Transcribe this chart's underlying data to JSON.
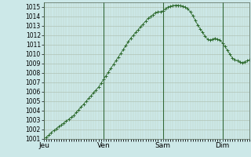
{
  "background_color": "#cce8e8",
  "plot_bg_color": "#cce8e8",
  "grid_major_color": "#aabbaa",
  "grid_minor_color": "#bbccbb",
  "line_color": "#2d6a2d",
  "marker_color": "#2d6a2d",
  "ylim": [
    1001,
    1015.5
  ],
  "yticks": [
    1001,
    1002,
    1003,
    1004,
    1005,
    1006,
    1007,
    1008,
    1009,
    1010,
    1011,
    1012,
    1013,
    1014,
    1015
  ],
  "day_labels": [
    "Jeu",
    "Ven",
    "Sam",
    "Dim"
  ],
  "day_positions": [
    0,
    48,
    96,
    144
  ],
  "vline_positions": [
    0,
    48,
    96,
    144
  ],
  "xlim": [
    0,
    166
  ],
  "x": [
    0,
    2,
    4,
    6,
    8,
    10,
    12,
    14,
    16,
    18,
    20,
    22,
    24,
    26,
    28,
    30,
    32,
    34,
    36,
    38,
    40,
    42,
    44,
    46,
    48,
    50,
    52,
    54,
    56,
    58,
    60,
    62,
    64,
    66,
    68,
    70,
    72,
    74,
    76,
    78,
    80,
    82,
    84,
    86,
    88,
    90,
    92,
    94,
    96,
    98,
    100,
    102,
    104,
    106,
    108,
    110,
    112,
    114,
    116,
    118,
    120,
    122,
    124,
    126,
    128,
    130,
    132,
    134,
    136,
    138,
    140,
    142,
    144,
    146,
    148,
    150,
    152,
    154,
    156,
    158,
    160,
    162,
    164,
    166
  ],
  "y": [
    1001.0,
    1001.2,
    1001.4,
    1001.7,
    1001.9,
    1002.1,
    1002.3,
    1002.5,
    1002.7,
    1002.9,
    1003.1,
    1003.3,
    1003.5,
    1003.8,
    1004.1,
    1004.4,
    1004.7,
    1005.0,
    1005.3,
    1005.6,
    1005.9,
    1006.2,
    1006.5,
    1006.9,
    1007.3,
    1007.7,
    1008.1,
    1008.5,
    1008.9,
    1009.3,
    1009.7,
    1010.1,
    1010.5,
    1010.9,
    1011.3,
    1011.7,
    1012.0,
    1012.3,
    1012.6,
    1012.9,
    1013.2,
    1013.5,
    1013.8,
    1014.0,
    1014.2,
    1014.4,
    1014.5,
    1014.5,
    1014.6,
    1014.8,
    1015.0,
    1015.1,
    1015.15,
    1015.2,
    1015.2,
    1015.15,
    1015.1,
    1015.0,
    1014.8,
    1014.5,
    1014.1,
    1013.6,
    1013.1,
    1012.7,
    1012.3,
    1011.9,
    1011.6,
    1011.5,
    1011.6,
    1011.7,
    1011.6,
    1011.5,
    1011.2,
    1010.8,
    1010.4,
    1010.0,
    1009.6,
    1009.4,
    1009.3,
    1009.2,
    1009.1,
    1009.2,
    1009.3,
    1009.4
  ]
}
